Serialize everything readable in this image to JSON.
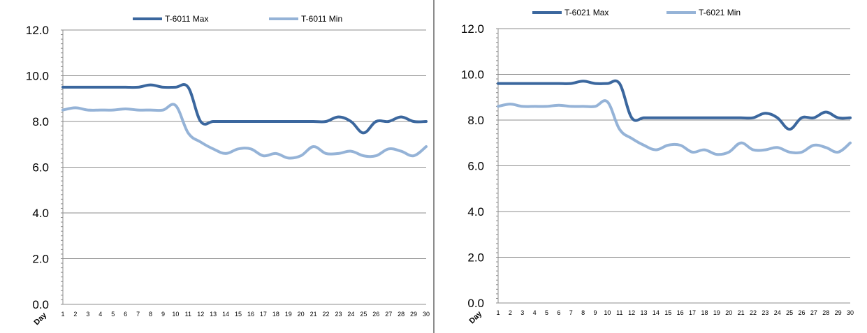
{
  "chart_data": [
    {
      "type": "line",
      "title": "",
      "xlabel": "Day",
      "ylabel": "",
      "categories": [
        1,
        2,
        3,
        4,
        5,
        6,
        7,
        8,
        9,
        10,
        11,
        12,
        13,
        14,
        15,
        16,
        17,
        18,
        19,
        20,
        21,
        22,
        23,
        24,
        25,
        26,
        27,
        28,
        29,
        30
      ],
      "ylim": [
        0,
        12
      ],
      "yticks": [
        "0.0",
        "2.0",
        "4.0",
        "6.0",
        "8.0",
        "10.0",
        "12.0"
      ],
      "grid": "horizontal",
      "legend": "top",
      "series": [
        {
          "name": "T-6011 Max",
          "color": "#3b679e",
          "values": [
            9.5,
            9.5,
            9.5,
            9.5,
            9.5,
            9.5,
            9.5,
            9.6,
            9.5,
            9.5,
            9.5,
            8.0,
            8.0,
            8.0,
            8.0,
            8.0,
            8.0,
            8.0,
            8.0,
            8.0,
            8.0,
            8.0,
            8.2,
            8.0,
            7.5,
            8.0,
            8.0,
            8.2,
            8.0,
            8.0
          ]
        },
        {
          "name": "T-6011 Min",
          "color": "#95b3d7",
          "values": [
            8.5,
            8.6,
            8.5,
            8.5,
            8.5,
            8.55,
            8.5,
            8.5,
            8.5,
            8.7,
            7.5,
            7.1,
            6.8,
            6.6,
            6.8,
            6.8,
            6.5,
            6.6,
            6.4,
            6.5,
            6.9,
            6.6,
            6.6,
            6.7,
            6.5,
            6.5,
            6.8,
            6.7,
            6.5,
            6.9
          ]
        }
      ]
    },
    {
      "type": "line",
      "title": "",
      "xlabel": "Day",
      "ylabel": "",
      "categories": [
        1,
        2,
        3,
        4,
        5,
        6,
        7,
        8,
        9,
        10,
        11,
        12,
        13,
        14,
        15,
        16,
        17,
        18,
        19,
        20,
        21,
        22,
        23,
        24,
        25,
        26,
        27,
        28,
        29,
        30
      ],
      "ylim": [
        0,
        12
      ],
      "yticks": [
        "0.0",
        "2.0",
        "4.0",
        "6.0",
        "8.0",
        "10.0",
        "12.0"
      ],
      "grid": "horizontal",
      "legend": "top",
      "series": [
        {
          "name": "T-6021 Max",
          "color": "#3b679e",
          "values": [
            9.6,
            9.6,
            9.6,
            9.6,
            9.6,
            9.6,
            9.6,
            9.7,
            9.6,
            9.6,
            9.6,
            8.1,
            8.1,
            8.1,
            8.1,
            8.1,
            8.1,
            8.1,
            8.1,
            8.1,
            8.1,
            8.1,
            8.3,
            8.1,
            7.6,
            8.1,
            8.1,
            8.35,
            8.1,
            8.1
          ]
        },
        {
          "name": "T-6021 Min",
          "color": "#95b3d7",
          "values": [
            8.6,
            8.7,
            8.6,
            8.6,
            8.6,
            8.65,
            8.6,
            8.6,
            8.6,
            8.8,
            7.6,
            7.2,
            6.9,
            6.7,
            6.9,
            6.9,
            6.6,
            6.7,
            6.5,
            6.6,
            7.0,
            6.7,
            6.7,
            6.8,
            6.6,
            6.6,
            6.9,
            6.8,
            6.6,
            7.0
          ]
        }
      ]
    }
  ]
}
